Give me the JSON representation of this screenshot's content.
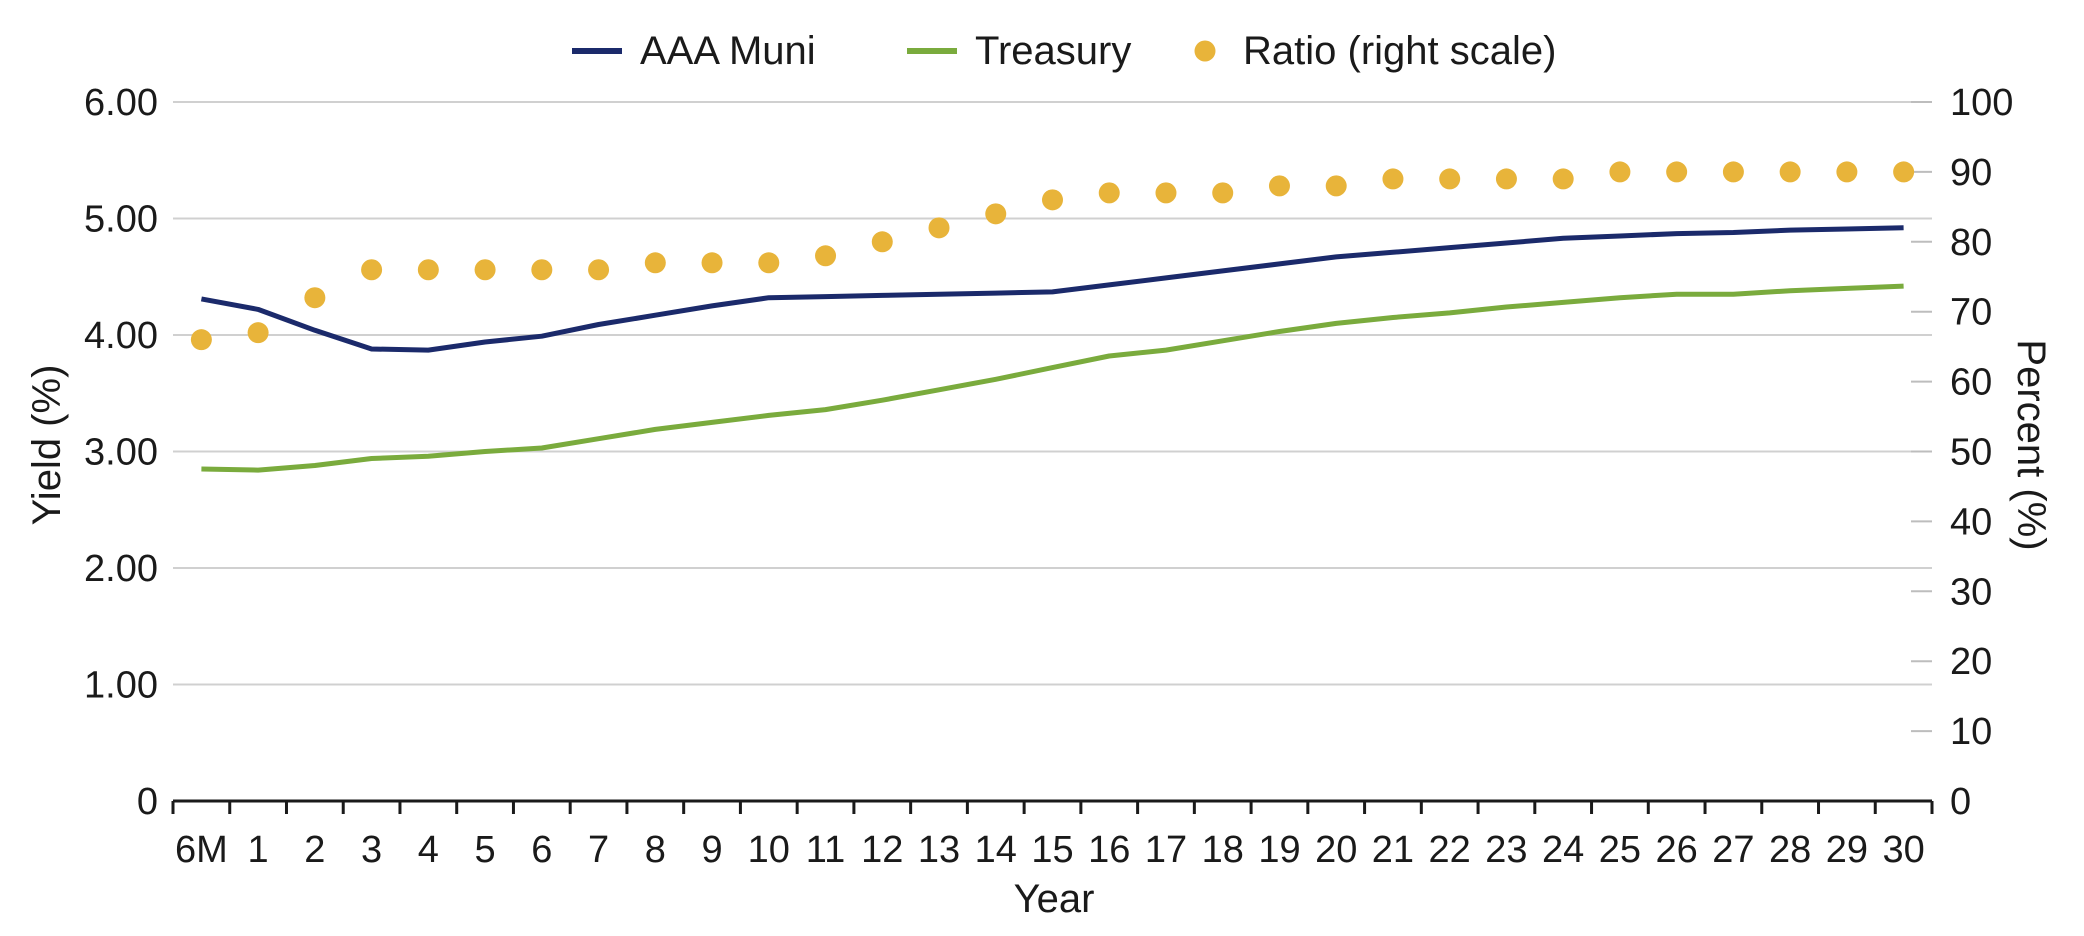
{
  "chart_data": {
    "type": "line",
    "title": "",
    "xlabel": "Year",
    "ylabel": "Yield (%)",
    "y2label": "Percent (%)",
    "categories": [
      "6M",
      "1",
      "2",
      "3",
      "4",
      "5",
      "6",
      "7",
      "8",
      "9",
      "10",
      "11",
      "12",
      "13",
      "14",
      "15",
      "16",
      "17",
      "18",
      "19",
      "20",
      "21",
      "22",
      "23",
      "24",
      "25",
      "26",
      "27",
      "28",
      "29",
      "30"
    ],
    "ylim": [
      0,
      6
    ],
    "y_ticks": [
      "0",
      "1.00",
      "2.00",
      "3.00",
      "4.00",
      "5.00",
      "6.00"
    ],
    "y2lim": [
      0,
      100
    ],
    "y2_ticks": [
      "0",
      "10",
      "20",
      "30",
      "40",
      "50",
      "60",
      "70",
      "80",
      "90",
      "100"
    ],
    "grid": true,
    "legend_position": "top",
    "series": [
      {
        "name": "AAA Muni",
        "type": "line",
        "axis": "left",
        "color": "#1b2a6b",
        "values": [
          4.31,
          4.22,
          4.04,
          3.88,
          3.87,
          3.94,
          3.99,
          4.09,
          4.17,
          4.25,
          4.32,
          4.33,
          4.34,
          4.35,
          4.36,
          4.37,
          4.43,
          4.49,
          4.55,
          4.61,
          4.67,
          4.71,
          4.75,
          4.79,
          4.83,
          4.85,
          4.87,
          4.88,
          4.9,
          4.91,
          4.92
        ]
      },
      {
        "name": "Treasury",
        "type": "line",
        "axis": "left",
        "color": "#7aab3d",
        "values": [
          2.85,
          2.84,
          2.88,
          2.94,
          2.96,
          3.0,
          3.03,
          3.11,
          3.19,
          3.25,
          3.31,
          3.36,
          3.44,
          3.53,
          3.62,
          3.72,
          3.82,
          3.87,
          3.95,
          4.03,
          4.1,
          4.15,
          4.19,
          4.24,
          4.28,
          4.32,
          4.35,
          4.35,
          4.38,
          4.4,
          4.42
        ]
      },
      {
        "name": "Ratio (right scale)",
        "type": "scatter",
        "axis": "right",
        "color": "#e8b43a",
        "values": [
          66,
          67,
          72,
          76,
          76,
          76,
          76,
          76,
          77,
          77,
          77,
          78,
          80,
          82,
          84,
          86,
          87,
          87,
          87,
          88,
          88,
          89,
          89,
          89,
          89,
          90,
          90,
          90,
          90,
          90,
          90
        ]
      }
    ]
  }
}
